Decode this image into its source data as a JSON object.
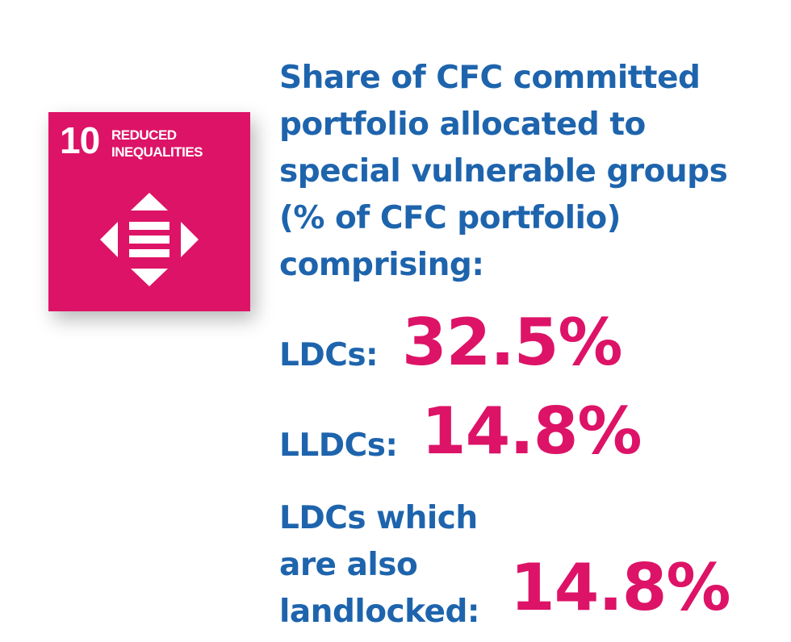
{
  "sdg_tile": {
    "number": "10",
    "label": "REDUCED\nINEQUALITIES",
    "icon": "reduced-inequalities-icon",
    "color": "#dd1367"
  },
  "heading": {
    "line1": "Share of CFC committed",
    "line2": "portfolio allocated to",
    "line3": "special vulnerable groups",
    "line4": "(% of CFC portfolio)",
    "line5": "comprising:",
    "color": "#1e64ad"
  },
  "stats": {
    "ldcs": {
      "label": "LDCs:",
      "value": "32.5%"
    },
    "lldcs": {
      "label": "LLDCs:",
      "value": "14.8%"
    },
    "landlocked": {
      "label_line1": "LDCs which",
      "label_line2": "are also",
      "label_line3": "landlocked:",
      "value": "14.8%"
    },
    "value_color": "#dd1367"
  }
}
